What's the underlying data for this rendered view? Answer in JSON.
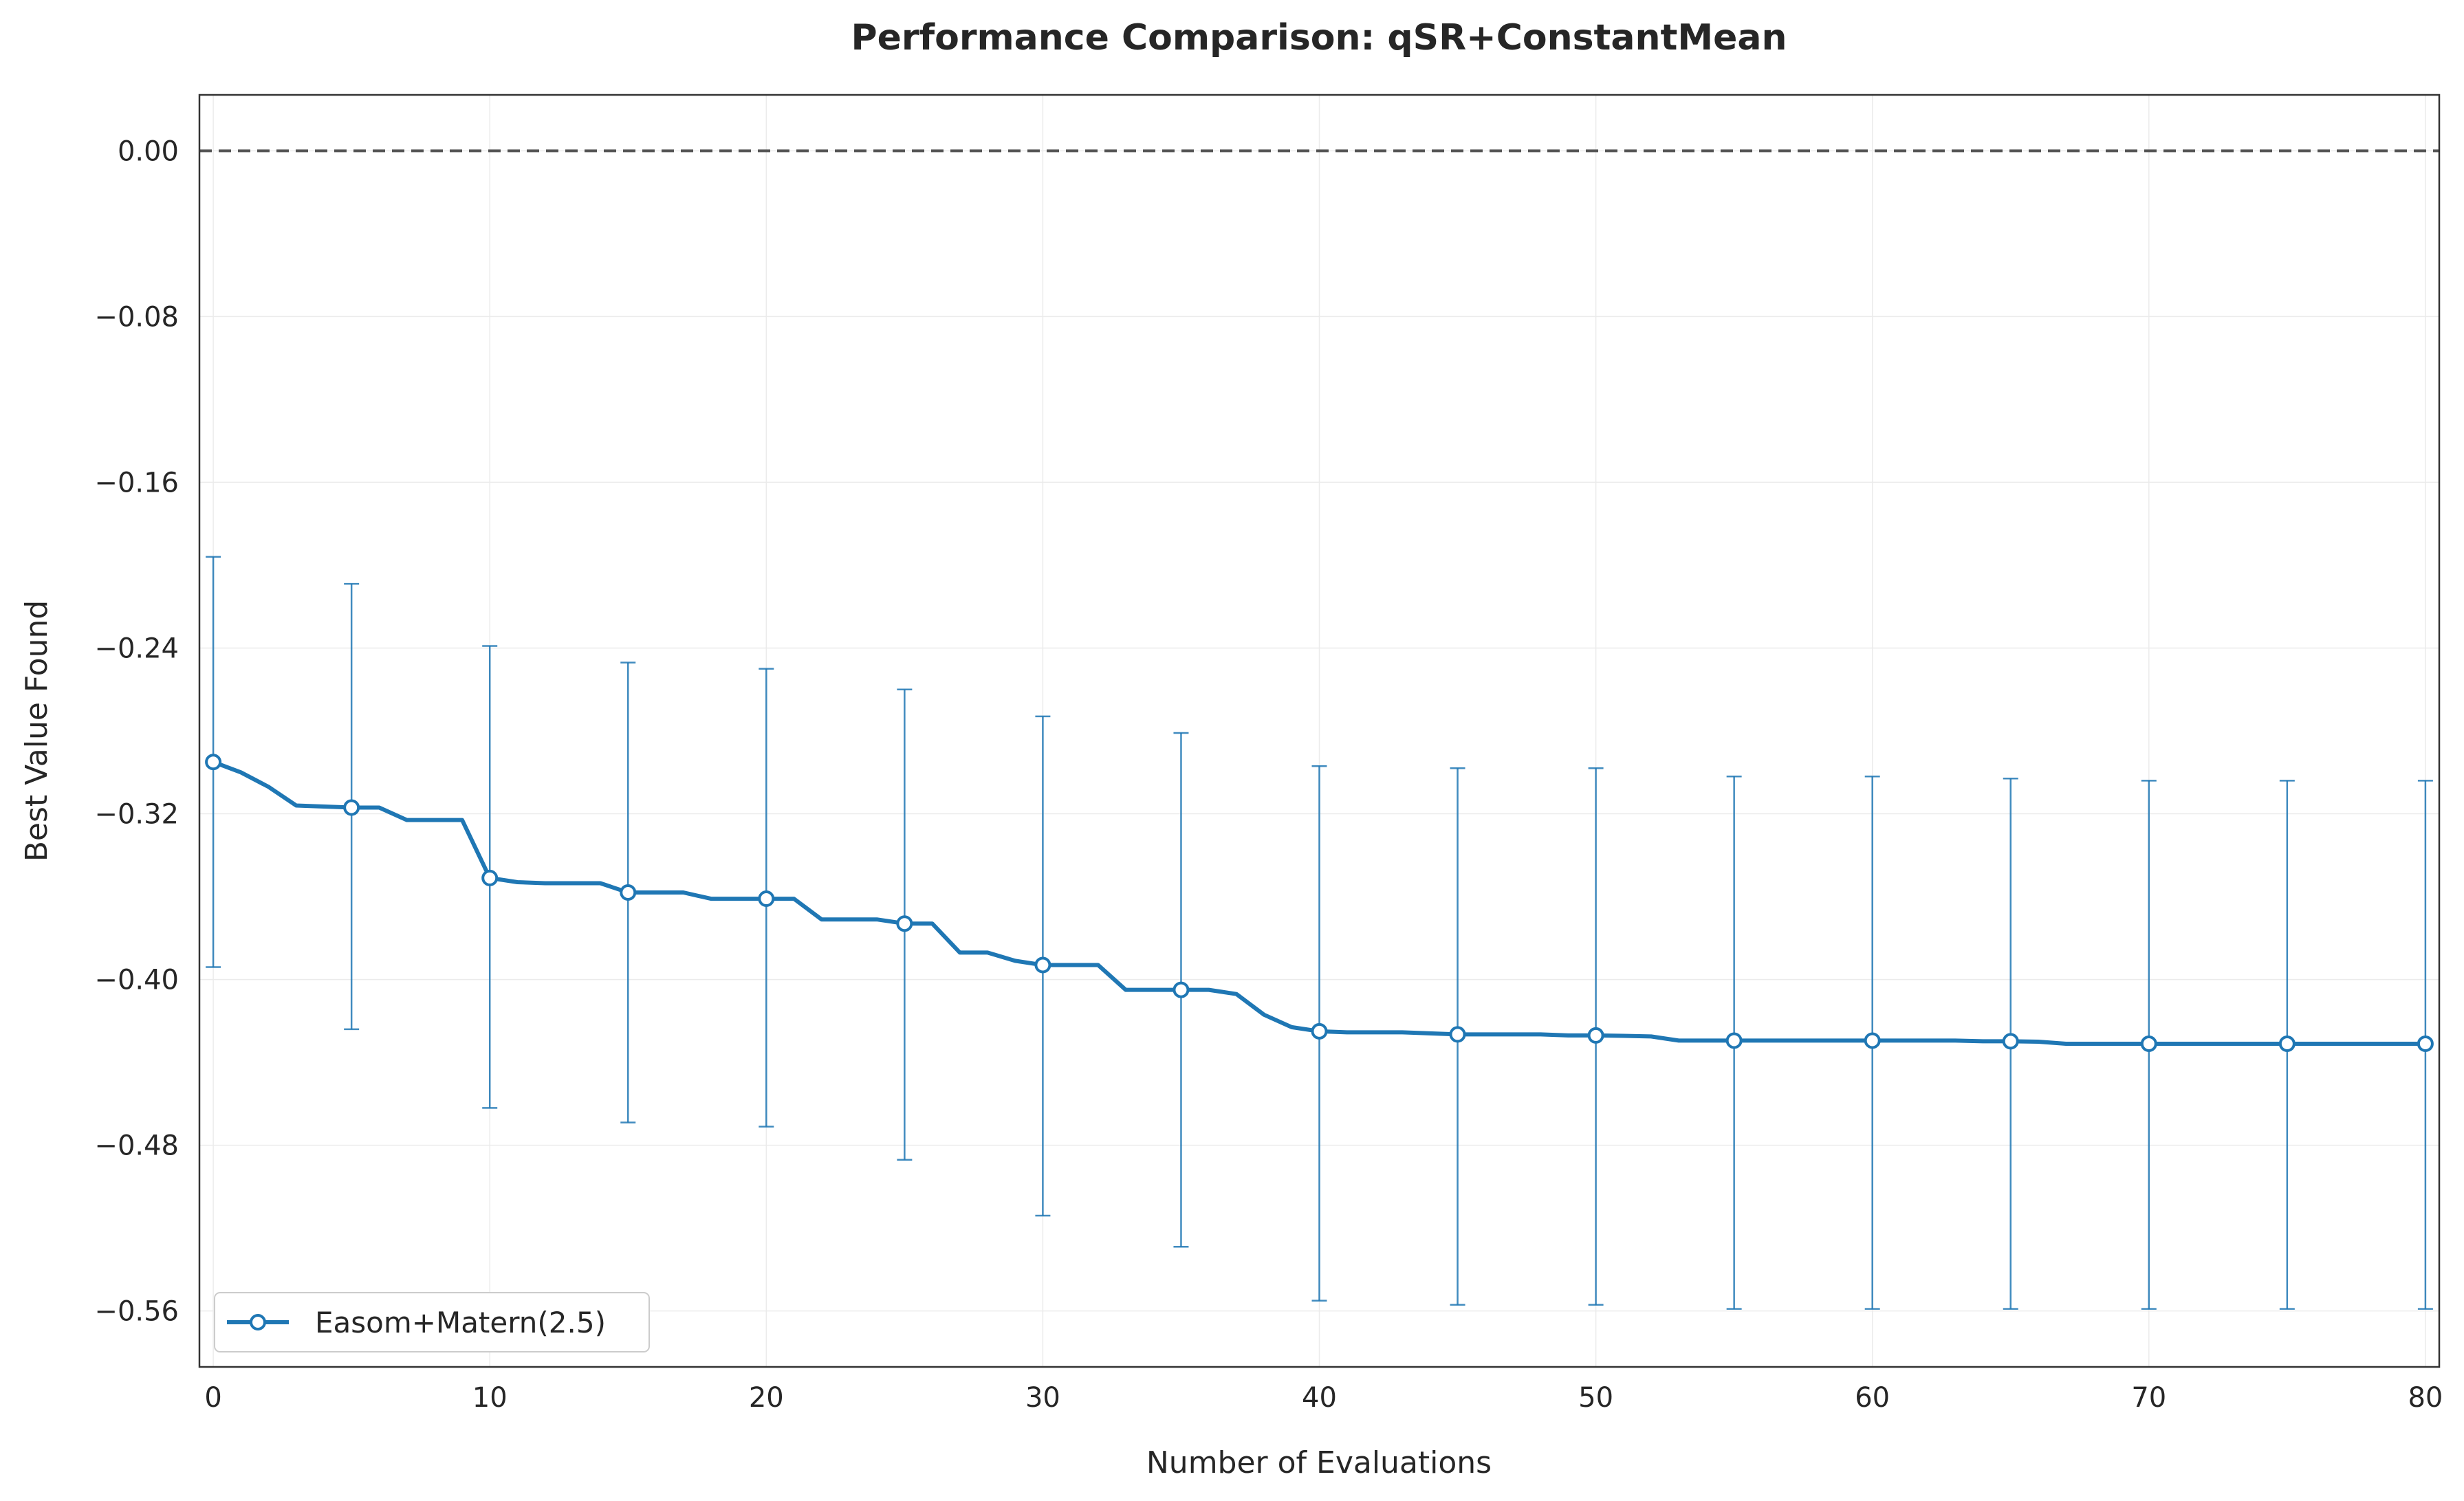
{
  "chart_data": {
    "type": "line",
    "title": "Performance Comparison: qSR+ConstantMean",
    "xlabel": "Number of Evaluations",
    "ylabel": "Best Value Found",
    "xlim": [
      -0.5,
      80.5
    ],
    "ylim": [
      -0.587,
      0.027
    ],
    "x_ticks": [
      0,
      10,
      20,
      30,
      40,
      50,
      60,
      70,
      80
    ],
    "y_ticks": [
      0.0,
      -0.08,
      -0.16,
      -0.24,
      -0.32,
      -0.4,
      -0.48,
      -0.56
    ],
    "y_tick_labels": [
      "0.00",
      "−0.08",
      "−0.16",
      "−0.24",
      "−0.32",
      "−0.40",
      "−0.48",
      "−0.56"
    ],
    "reference_line": {
      "y": 0.0,
      "style": "dashed",
      "color": "#555555"
    },
    "grid": true,
    "legend": {
      "position": "lower-left",
      "entries": [
        "Easom+Matern(2.5)"
      ]
    },
    "series": [
      {
        "name": "Easom+Matern(2.5)",
        "color": "#1f77b4",
        "x": [
          0,
          1,
          2,
          3,
          4,
          5,
          6,
          7,
          8,
          9,
          10,
          11,
          12,
          13,
          14,
          15,
          16,
          17,
          18,
          19,
          20,
          21,
          22,
          23,
          24,
          25,
          26,
          27,
          28,
          29,
          30,
          31,
          32,
          33,
          34,
          35,
          36,
          37,
          38,
          39,
          40,
          41,
          42,
          43,
          44,
          45,
          46,
          47,
          48,
          49,
          50,
          51,
          52,
          53,
          54,
          55,
          56,
          57,
          58,
          59,
          60,
          61,
          62,
          63,
          64,
          65,
          66,
          67,
          68,
          69,
          70,
          71,
          72,
          73,
          74,
          75,
          76,
          77,
          78,
          79,
          80
        ],
        "values": [
          -0.295,
          -0.3,
          -0.307,
          -0.316,
          -0.3165,
          -0.317,
          -0.317,
          -0.323,
          -0.323,
          -0.323,
          -0.351,
          -0.353,
          -0.3535,
          -0.3535,
          -0.3535,
          -0.358,
          -0.358,
          -0.358,
          -0.361,
          -0.361,
          -0.361,
          -0.361,
          -0.371,
          -0.371,
          -0.371,
          -0.373,
          -0.373,
          -0.387,
          -0.387,
          -0.391,
          -0.393,
          -0.393,
          -0.393,
          -0.405,
          -0.405,
          -0.405,
          -0.405,
          -0.407,
          -0.417,
          -0.423,
          -0.425,
          -0.4255,
          -0.4255,
          -0.4255,
          -0.426,
          -0.4265,
          -0.4265,
          -0.4265,
          -0.4265,
          -0.427,
          -0.427,
          -0.4272,
          -0.4275,
          -0.4295,
          -0.4295,
          -0.4295,
          -0.4295,
          -0.4295,
          -0.4295,
          -0.4295,
          -0.4295,
          -0.4295,
          -0.4295,
          -0.4295,
          -0.4298,
          -0.4298,
          -0.43,
          -0.431,
          -0.431,
          -0.431,
          -0.431,
          -0.431,
          -0.431,
          -0.431,
          -0.431,
          -0.431,
          -0.431,
          -0.431,
          -0.431,
          -0.431,
          -0.431
        ],
        "marker_x": [
          0,
          5,
          10,
          15,
          20,
          25,
          30,
          35,
          40,
          45,
          50,
          55,
          60,
          65,
          70,
          75,
          80
        ],
        "error_bars": [
          {
            "x": 0,
            "y": -0.295,
            "low": -0.394,
            "high": -0.196
          },
          {
            "x": 5,
            "y": -0.317,
            "low": -0.424,
            "high": -0.209
          },
          {
            "x": 10,
            "y": -0.351,
            "low": -0.462,
            "high": -0.239
          },
          {
            "x": 15,
            "y": -0.358,
            "low": -0.469,
            "high": -0.247
          },
          {
            "x": 20,
            "y": -0.361,
            "low": -0.471,
            "high": -0.25
          },
          {
            "x": 25,
            "y": -0.373,
            "low": -0.487,
            "high": -0.26
          },
          {
            "x": 30,
            "y": -0.393,
            "low": -0.514,
            "high": -0.273
          },
          {
            "x": 35,
            "y": -0.405,
            "low": -0.529,
            "high": -0.281
          },
          {
            "x": 40,
            "y": -0.425,
            "low": -0.555,
            "high": -0.297
          },
          {
            "x": 45,
            "y": -0.4265,
            "low": -0.557,
            "high": -0.298
          },
          {
            "x": 50,
            "y": -0.427,
            "low": -0.557,
            "high": -0.298
          },
          {
            "x": 55,
            "y": -0.4295,
            "low": -0.559,
            "high": -0.302
          },
          {
            "x": 60,
            "y": -0.4295,
            "low": -0.559,
            "high": -0.302
          },
          {
            "x": 65,
            "y": -0.4298,
            "low": -0.559,
            "high": -0.303
          },
          {
            "x": 70,
            "y": -0.431,
            "low": -0.559,
            "high": -0.304
          },
          {
            "x": 75,
            "y": -0.431,
            "low": -0.559,
            "high": -0.304
          },
          {
            "x": 80,
            "y": -0.431,
            "low": -0.559,
            "high": -0.304
          }
        ]
      }
    ]
  }
}
